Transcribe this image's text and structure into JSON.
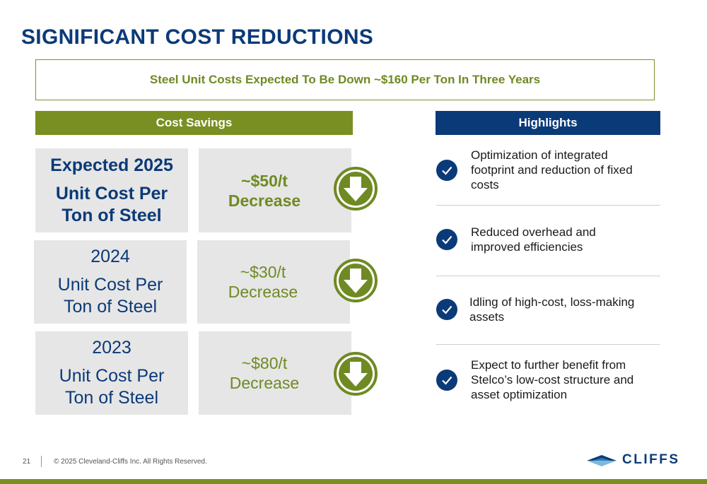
{
  "title": "SIGNIFICANT COST REDUCTIONS",
  "banner": "Steel Unit Costs Expected To Be Down ~$160 Per Ton In Three Years",
  "cost_header": "Cost Savings",
  "highlights_header": "Highlights",
  "rows": [
    {
      "year": "Expected 2025",
      "line1": "Unit Cost Per",
      "line2": "Ton of Steel",
      "value": "~$50/t",
      "change": "Decrease",
      "bold": true
    },
    {
      "year": "2024",
      "line1": "Unit Cost Per",
      "line2": "Ton of Steel",
      "value": "~$30/t",
      "change": "Decrease",
      "bold": false
    },
    {
      "year": "2023",
      "line1": "Unit Cost Per",
      "line2": "Ton of Steel",
      "value": "~$80/t",
      "change": "Decrease",
      "bold": false
    }
  ],
  "highlights": [
    {
      "text_lines": [
        "Optimization of integrated",
        "footprint and reduction of fixed",
        "costs"
      ]
    },
    {
      "text_lines": [
        "Reduced overhead and",
        "improved efficiencies"
      ]
    },
    {
      "text_lines": [
        "Idling of high-cost, loss-making",
        "assets"
      ]
    },
    {
      "text_lines": [
        "Expect to further benefit from",
        "Stelco’s low-cost structure and",
        "asset optimization"
      ]
    }
  ],
  "icons": {
    "arrow": "down-arrow-icon",
    "check": "check-icon",
    "logo": "cliffs-logo-icon"
  },
  "colors": {
    "navy": "#0b3a78",
    "olive": "#7a8f22",
    "box_gray": "#e6e6e6"
  },
  "footer": {
    "page_number": "21",
    "copyright": "© 2025 Cleveland-Cliffs Inc. All Rights Reserved.",
    "logo_text": "CLIFFS"
  }
}
